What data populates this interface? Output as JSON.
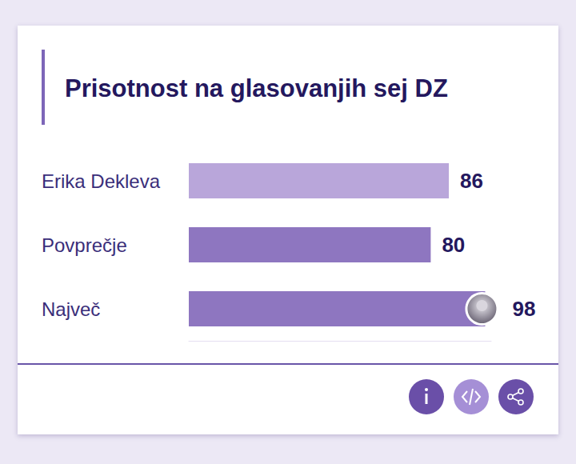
{
  "chart_data": {
    "type": "bar",
    "title": "Prisotnost na glasovanjih sej DZ",
    "categories": [
      "Erika Dekleva",
      "Povprečje",
      "Največ"
    ],
    "values": [
      86,
      80,
      98
    ],
    "colors": [
      "#b9a6da",
      "#8e76c0",
      "#8e76c0"
    ],
    "orientation": "horizontal",
    "data_labels": true,
    "tick_labels": "y",
    "grid": false,
    "xlim": [
      0,
      100
    ]
  }
}
